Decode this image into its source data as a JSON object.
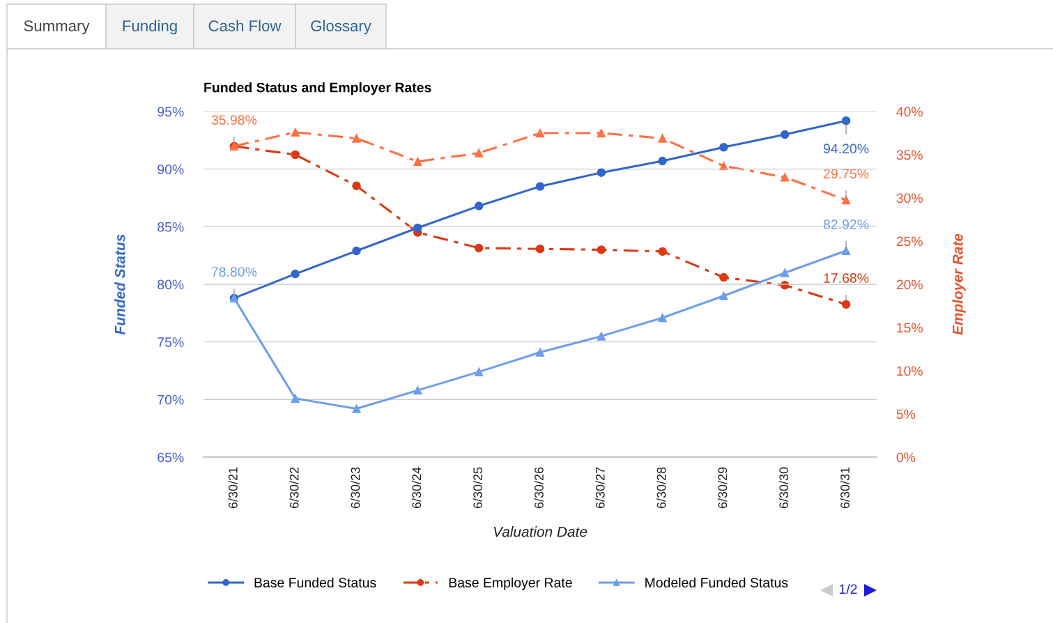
{
  "chart_data": {
    "type": "line",
    "title": "Funded Status and Employer Rates",
    "xlabel": "Valuation Date",
    "ylabel": "Funded Status",
    "y2label": "Employer Rate",
    "categories": [
      "6/30/21",
      "6/30/22",
      "6/30/23",
      "6/30/24",
      "6/30/25",
      "6/30/26",
      "6/30/27",
      "6/30/28",
      "6/30/29",
      "6/30/30",
      "6/30/31"
    ],
    "series": [
      {
        "name": "Base Funded Status",
        "color": "#3366cc",
        "marker": "circle",
        "line_style": "solid",
        "values": [
          78.8,
          80.9,
          82.9,
          84.9,
          86.8,
          88.5,
          89.7,
          90.7,
          91.9,
          93.0,
          94.2
        ],
        "value_labels": [
          null,
          null,
          null,
          null,
          null,
          null,
          null,
          null,
          null,
          null,
          "94.20%"
        ]
      },
      {
        "name": "Base Employer Rate",
        "color": "#dc3912",
        "marker": "circle",
        "line_style": "dashed",
        "axis": "y2",
        "values": [
          35.98,
          35.0,
          31.4,
          26.0,
          24.2,
          24.1,
          24.0,
          23.8,
          20.8,
          19.9,
          17.68
        ],
        "value_labels": [
          null,
          null,
          null,
          null,
          null,
          null,
          null,
          null,
          null,
          null,
          "17.68%"
        ]
      },
      {
        "name": "Modeled Funded Status",
        "color": "#6d9eeb",
        "marker": "triangle",
        "line_style": "solid",
        "values": [
          78.8,
          70.1,
          69.2,
          70.8,
          72.4,
          74.1,
          75.5,
          77.1,
          79.0,
          81.0,
          82.92
        ],
        "value_labels": [
          "78.80%",
          null,
          null,
          null,
          null,
          null,
          null,
          null,
          null,
          null,
          "82.92%"
        ]
      },
      {
        "color": "#ff7043",
        "marker": "triangle",
        "line_style": "dashed",
        "axis": "y2",
        "values": [
          35.98,
          37.6,
          36.9,
          34.2,
          35.2,
          37.5,
          37.5,
          36.9,
          33.7,
          32.4,
          29.75
        ],
        "value_labels": [
          "35.98%",
          null,
          null,
          null,
          null,
          null,
          null,
          null,
          null,
          null,
          "29.75%"
        ]
      }
    ],
    "ylim": [
      65,
      95
    ],
    "yticks": [
      {
        "value": 65,
        "label": "65%"
      },
      {
        "value": 70,
        "label": "70%"
      },
      {
        "value": 75,
        "label": "75%"
      },
      {
        "value": 80,
        "label": "80%"
      },
      {
        "value": 85,
        "label": "85%"
      },
      {
        "value": 90,
        "label": "90%"
      },
      {
        "value": 95,
        "label": "95%"
      }
    ],
    "y2lim": [
      0,
      40
    ],
    "y2ticks": [
      {
        "value": 0,
        "label": "0%"
      },
      {
        "value": 5,
        "label": "5%"
      },
      {
        "value": 10,
        "label": "10%"
      },
      {
        "value": 15,
        "label": "15%"
      },
      {
        "value": 20,
        "label": "20%"
      },
      {
        "value": 25,
        "label": "25%"
      },
      {
        "value": 30,
        "label": "30%"
      },
      {
        "value": 35,
        "label": "35%"
      },
      {
        "value": 40,
        "label": "40%"
      }
    ],
    "grid": "y",
    "legend": "bottom",
    "annotations": [
      "Summary",
      "Funding",
      "Cash Flow",
      "Glossary",
      "1/2"
    ]
  }
}
